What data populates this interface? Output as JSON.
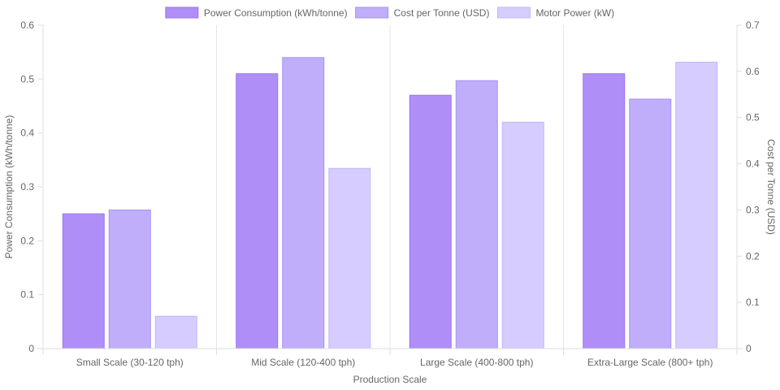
{
  "chart_data": {
    "type": "bar",
    "categories": [
      "Small Scale (30-120 tph)",
      "Mid Scale (120-400 tph)",
      "Large Scale (400-800 tph)",
      "Extra-Large Scale (800+ tph)"
    ],
    "series": [
      {
        "name": "Power Consumption (kWh/tonne)",
        "axis": "left",
        "color": "#b08ef8",
        "border_color": "#9b72f0",
        "values": [
          0.25,
          0.51,
          0.47,
          0.51
        ]
      },
      {
        "name": "Cost per Tonne (USD)",
        "axis": "right",
        "color": "#c0aefa",
        "border_color": "#a891f3",
        "values": [
          0.3,
          0.63,
          0.58,
          0.54
        ]
      },
      {
        "name": "Motor Power (kW)",
        "axis": "right",
        "color": "#d6ccff",
        "border_color": "#c4b6fb",
        "values": [
          0.07,
          0.39,
          0.49,
          0.62
        ]
      }
    ],
    "xlabel": "Production Scale",
    "ylabel": "Power Consumption (kWh/tonne)",
    "y2label": "Cost per Tonne (USD)",
    "ylim": [
      0,
      0.6
    ],
    "y2lim": [
      0,
      0.7
    ],
    "yticks": [
      "0",
      "0.1",
      "0.2",
      "0.3",
      "0.4",
      "0.5",
      "0.6"
    ],
    "y2ticks": [
      "0",
      "0.1",
      "0.2",
      "0.3",
      "0.4",
      "0.5",
      "0.6",
      "0.7"
    ],
    "legend_position": "top",
    "grid": true
  }
}
